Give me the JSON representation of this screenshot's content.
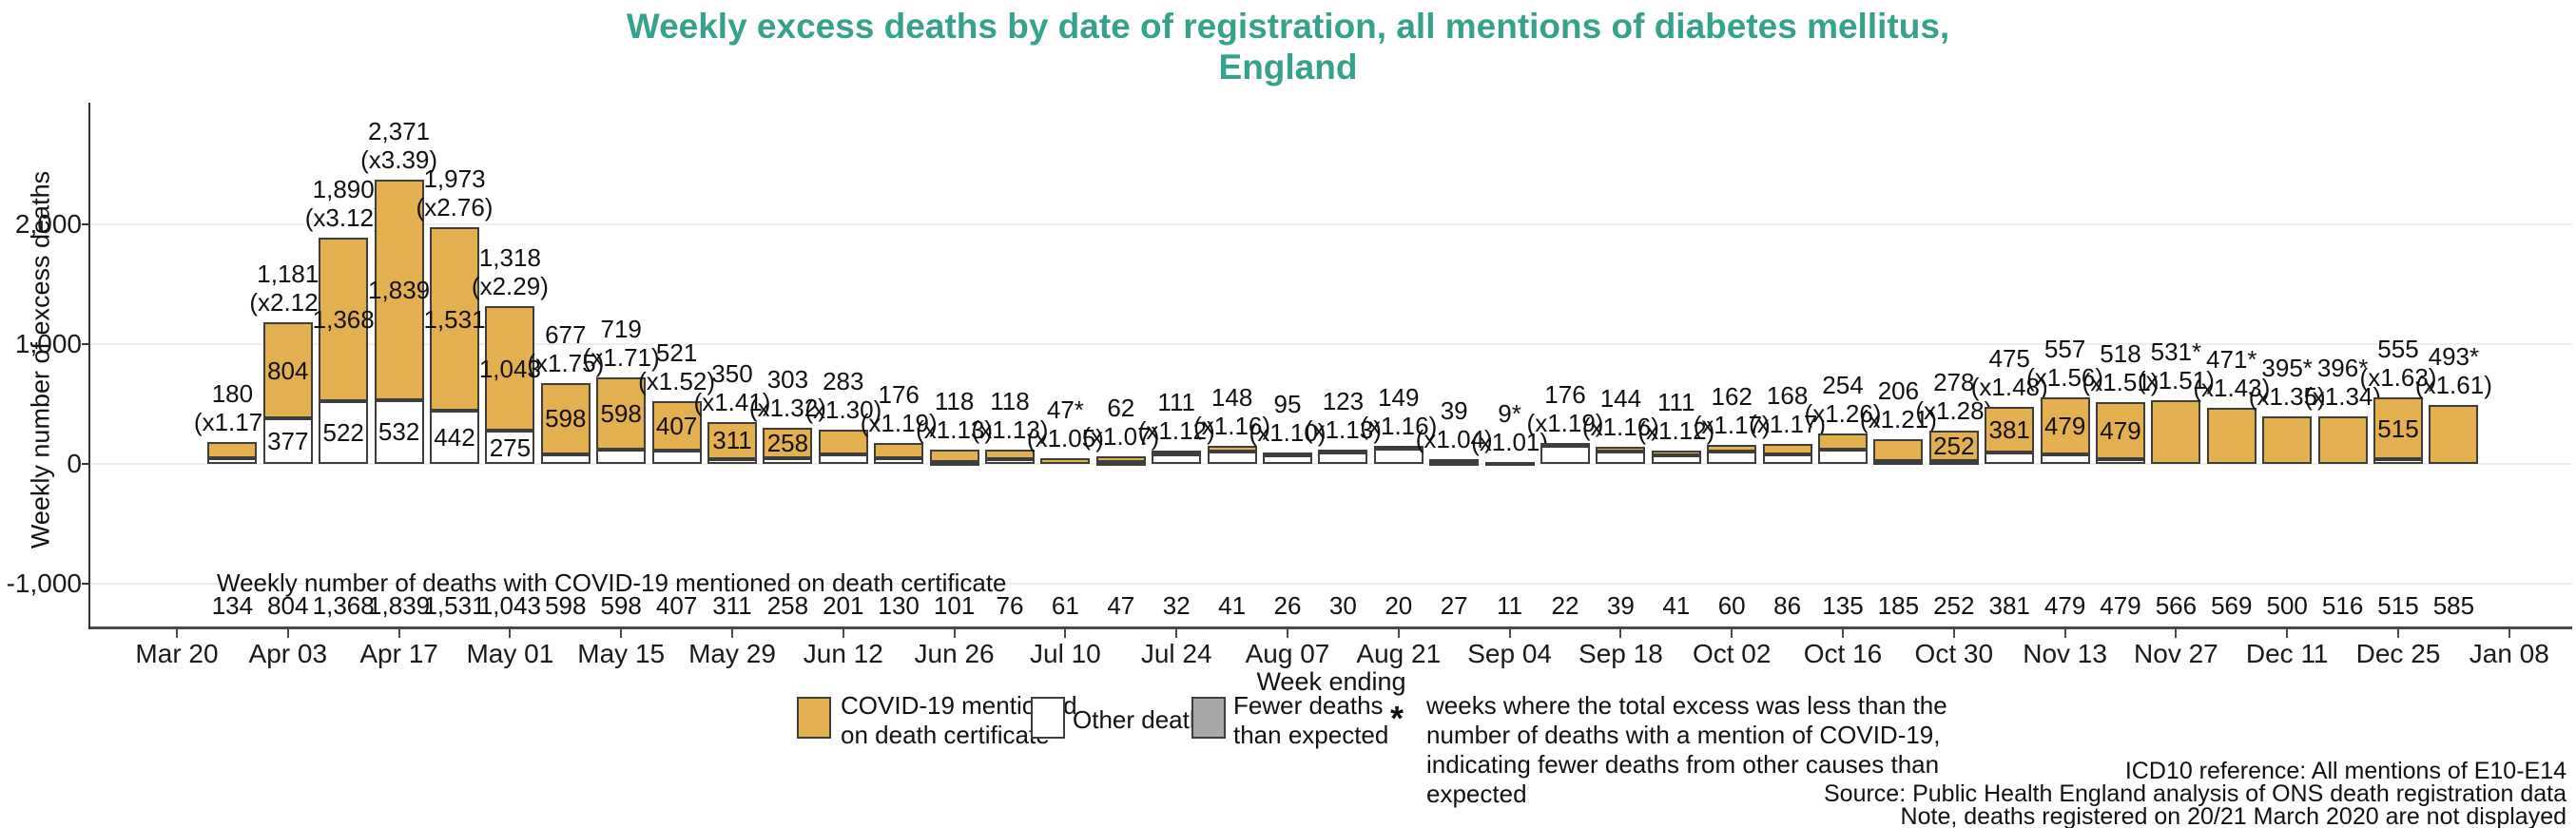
{
  "title": "Weekly excess deaths by date of registration, all mentions of diabetes mellitus,\nEngland",
  "axes": {
    "x_title": "Week ending",
    "y_title": "Weekly number of excess deaths",
    "y_ticks": [
      {
        "value": -1000,
        "label": "-1,000"
      },
      {
        "value": 0,
        "label": "0"
      },
      {
        "value": 1000,
        "label": "1,000"
      },
      {
        "value": 2000,
        "label": "2,000"
      }
    ],
    "x_tick_labels": [
      "Mar 20",
      "Apr 03",
      "Apr 17",
      "May 01",
      "May 15",
      "May 29",
      "Jun 12",
      "Jun 26",
      "Jul 10",
      "Jul 24",
      "Aug 07",
      "Aug 21",
      "Sep 04",
      "Sep 18",
      "Oct 02",
      "Oct 16",
      "Oct 30",
      "Nov 13",
      "Nov 27",
      "Dec 11",
      "Dec 25",
      "Jan 08"
    ]
  },
  "covid_row_header": "Weekly number of deaths with COVID-19 mentioned on death certificate",
  "chart_data": {
    "type": "bar",
    "stacked": true,
    "title": "Weekly excess deaths by date of registration, all mentions of diabetes mellitus, England",
    "xlabel": "Week ending",
    "ylabel": "Weekly number of excess deaths",
    "ylim": [
      -1500,
      2750
    ],
    "y_gridlines": [
      -1000,
      0,
      1000,
      2000
    ],
    "x_tick_labels": [
      "Mar 20",
      "Apr 03",
      "Apr 17",
      "May 01",
      "May 15",
      "May 29",
      "Jun 12",
      "Jun 26",
      "Jul 10",
      "Jul 24",
      "Aug 07",
      "Aug 21",
      "Sep 04",
      "Sep 18",
      "Oct 02",
      "Oct 16",
      "Oct 30",
      "Nov 13",
      "Nov 27",
      "Dec 11",
      "Dec 25",
      "Jan 08"
    ],
    "legend_position": "bottom",
    "bars": [
      {
        "total": 180,
        "total_label": "180",
        "ratio_label": "(x1.17)",
        "covid": 134,
        "covid_label": "134"
      },
      {
        "total": 1181,
        "total_label": "1,181",
        "ratio_label": "(x2.12)",
        "covid": 804,
        "covid_label": "804",
        "covid_inner_label": "804",
        "other_inner_label": "377"
      },
      {
        "total": 1890,
        "total_label": "1,890",
        "ratio_label": "(x3.12)",
        "covid": 1368,
        "covid_label": "1,368",
        "covid_inner_label": "1,368",
        "other_inner_label": "522"
      },
      {
        "total": 2371,
        "total_label": "2,371",
        "ratio_label": "(x3.39)",
        "covid": 1839,
        "covid_label": "1,839",
        "covid_inner_label": "1,839",
        "other_inner_label": "532"
      },
      {
        "total": 1973,
        "total_label": "1,973",
        "ratio_label": "(x2.76)",
        "covid": 1531,
        "covid_label": "1,531",
        "covid_inner_label": "1,531",
        "other_inner_label": "442"
      },
      {
        "total": 1318,
        "total_label": "1,318",
        "ratio_label": "(x2.29)",
        "covid": 1043,
        "covid_label": "1,043",
        "covid_inner_label": "1,043",
        "other_inner_label": "275"
      },
      {
        "total": 677,
        "total_label": "677",
        "ratio_label": "(x1.75)",
        "covid": 598,
        "covid_label": "598",
        "covid_inner_label": "598"
      },
      {
        "total": 719,
        "total_label": "719",
        "ratio_label": "(x1.71)",
        "covid": 598,
        "covid_label": "598",
        "covid_inner_label": "598"
      },
      {
        "total": 521,
        "total_label": "521",
        "ratio_label": "(x1.52)",
        "covid": 407,
        "covid_label": "407",
        "covid_inner_label": "407"
      },
      {
        "total": 350,
        "total_label": "350",
        "ratio_label": "(x1.41)",
        "covid": 311,
        "covid_label": "311",
        "covid_inner_label": "311"
      },
      {
        "total": 303,
        "total_label": "303",
        "ratio_label": "(x1.32)",
        "covid": 258,
        "covid_label": "258",
        "covid_inner_label": "258"
      },
      {
        "total": 283,
        "total_label": "283",
        "ratio_label": "(x1.30)",
        "covid": 201,
        "covid_label": "201"
      },
      {
        "total": 176,
        "total_label": "176",
        "ratio_label": "(x1.19)",
        "covid": 130,
        "covid_label": "130"
      },
      {
        "total": 118,
        "total_label": "118",
        "ratio_label": "(x1.13)",
        "covid": 101,
        "covid_label": "101"
      },
      {
        "total": 118,
        "total_label": "118",
        "ratio_label": "(x1.13)",
        "covid": 76,
        "covid_label": "76"
      },
      {
        "total": 47,
        "total_label": "47*",
        "ratio_label": "(x1.05)",
        "covid": 61,
        "covid_label": "61"
      },
      {
        "total": 62,
        "total_label": "62",
        "ratio_label": "(x1.07)",
        "covid": 47,
        "covid_label": "47"
      },
      {
        "total": 111,
        "total_label": "111",
        "ratio_label": "(x1.12)",
        "covid": 32,
        "covid_label": "32"
      },
      {
        "total": 148,
        "total_label": "148",
        "ratio_label": "(x1.16)",
        "covid": 41,
        "covid_label": "41"
      },
      {
        "total": 95,
        "total_label": "95",
        "ratio_label": "(x1.10)",
        "covid": 26,
        "covid_label": "26"
      },
      {
        "total": 123,
        "total_label": "123",
        "ratio_label": "(x1.13)",
        "covid": 30,
        "covid_label": "30"
      },
      {
        "total": 149,
        "total_label": "149",
        "ratio_label": "(x1.16)",
        "covid": 20,
        "covid_label": "20"
      },
      {
        "total": 39,
        "total_label": "39",
        "ratio_label": "(x1.04)",
        "covid": 27,
        "covid_label": "27"
      },
      {
        "total": 9,
        "total_label": "9*",
        "ratio_label": "(x1.01)",
        "covid": 11,
        "covid_label": "11"
      },
      {
        "total": 176,
        "total_label": "176",
        "ratio_label": "(x1.19)",
        "covid": 22,
        "covid_label": "22"
      },
      {
        "total": 144,
        "total_label": "144",
        "ratio_label": "(x1.16)",
        "covid": 39,
        "covid_label": "39"
      },
      {
        "total": 111,
        "total_label": "111",
        "ratio_label": "(x1.12)",
        "covid": 41,
        "covid_label": "41"
      },
      {
        "total": 162,
        "total_label": "162",
        "ratio_label": "(x1.17)",
        "covid": 60,
        "covid_label": "60"
      },
      {
        "total": 168,
        "total_label": "168",
        "ratio_label": "(x1.17)",
        "covid": 86,
        "covid_label": "86"
      },
      {
        "total": 254,
        "total_label": "254",
        "ratio_label": "(x1.26)",
        "covid": 135,
        "covid_label": "135"
      },
      {
        "total": 206,
        "total_label": "206",
        "ratio_label": "(x1.21)",
        "covid": 185,
        "covid_label": "185"
      },
      {
        "total": 278,
        "total_label": "278",
        "ratio_label": "(x1.28)",
        "covid": 252,
        "covid_label": "252",
        "covid_inner_label": "252"
      },
      {
        "total": 475,
        "total_label": "475",
        "ratio_label": "(x1.48)",
        "covid": 381,
        "covid_label": "381",
        "covid_inner_label": "381"
      },
      {
        "total": 557,
        "total_label": "557",
        "ratio_label": "(x1.56)",
        "covid": 479,
        "covid_label": "479",
        "covid_inner_label": "479"
      },
      {
        "total": 518,
        "total_label": "518",
        "ratio_label": "(x1.51)",
        "covid": 479,
        "covid_label": "479",
        "covid_inner_label": "479"
      },
      {
        "total": 531,
        "total_label": "531*",
        "ratio_label": "(x1.51)",
        "covid": 566,
        "covid_label": "566"
      },
      {
        "total": 471,
        "total_label": "471*",
        "ratio_label": "(x1.43)",
        "covid": 569,
        "covid_label": "569"
      },
      {
        "total": 395,
        "total_label": "395*",
        "ratio_label": "(x1.35)",
        "covid": 500,
        "covid_label": "500"
      },
      {
        "total": 396,
        "total_label": "396*",
        "ratio_label": "(x1.34)",
        "covid": 516,
        "covid_label": "516"
      },
      {
        "total": 555,
        "total_label": "555",
        "ratio_label": "(x1.63)",
        "covid": 515,
        "covid_label": "515",
        "covid_inner_label": "515"
      },
      {
        "total": 493,
        "total_label": "493*",
        "ratio_label": "(x1.61)",
        "covid": 585,
        "covid_label": "585"
      }
    ]
  },
  "legend": {
    "covid_label": "COVID-19 mentioned\non death certificate",
    "other_label": "Other deaths",
    "fewer_label": "Fewer deaths\nthan expected",
    "star_symbol": "*",
    "star_note": "weeks where the total excess was less than the number of deaths with a mention of COVID-19, indicating fewer deaths from other causes than expected"
  },
  "footer": {
    "line1": "ICD10 reference: All mentions of E10-E14",
    "line2": "Source: Public Health England analysis of ONS death registration data",
    "line3": "Note, deaths registered on 20/21 March 2020 are not displayed"
  },
  "colors": {
    "title_teal": "#36a28c",
    "covid_gold": "#e2b04e",
    "other_white": "#ffffff",
    "fewer_gray": "#a8a8a8",
    "bar_border": "#3e3e3e",
    "gridline": "#f1efe4",
    "axis": "#4a4a4a"
  }
}
